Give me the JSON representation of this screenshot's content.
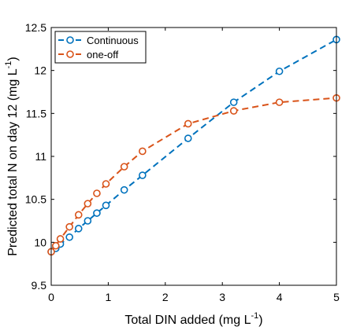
{
  "chart_data": {
    "type": "line",
    "title": "",
    "xlabel": {
      "main": "Total DIN added (mg L",
      "sup": "-1",
      "close": ")"
    },
    "ylabel": {
      "main": "Predicted total N on day 12 (mg L",
      "sup": "-1",
      "close": ")"
    },
    "xlim": [
      0,
      5
    ],
    "ylim": [
      9.5,
      12.5
    ],
    "xticks": [
      0,
      1,
      2,
      3,
      4,
      5
    ],
    "xtick_labels": [
      "0",
      "1",
      "2",
      "3",
      "4",
      "5"
    ],
    "yticks": [
      9.5,
      10,
      10.5,
      11,
      11.5,
      12,
      12.5
    ],
    "ytick_labels": [
      "9.5",
      "10",
      "10.5",
      "11",
      "11.5",
      "12",
      "12.5"
    ],
    "grid": false,
    "legend_position": "top-left",
    "series": [
      {
        "name": "Continuous",
        "color": "#0072BD",
        "line_style": "dashed",
        "marker": "open-circle",
        "x": [
          0,
          0.08,
          0.16,
          0.32,
          0.48,
          0.64,
          0.8,
          0.96,
          1.28,
          1.6,
          2.4,
          3.2,
          4.0,
          5.0
        ],
        "y": [
          9.89,
          9.93,
          9.98,
          10.06,
          10.16,
          10.25,
          10.34,
          10.43,
          10.61,
          10.78,
          11.21,
          11.63,
          11.99,
          12.36
        ]
      },
      {
        "name": "one-off",
        "color": "#D95319",
        "line_style": "dashed",
        "marker": "open-circle",
        "x": [
          0,
          0.08,
          0.16,
          0.32,
          0.48,
          0.64,
          0.8,
          0.96,
          1.28,
          1.6,
          2.4,
          3.2,
          4.0,
          5.0
        ],
        "y": [
          9.89,
          9.96,
          10.04,
          10.18,
          10.32,
          10.45,
          10.57,
          10.68,
          10.88,
          11.06,
          11.38,
          11.53,
          11.63,
          11.68
        ]
      }
    ]
  }
}
